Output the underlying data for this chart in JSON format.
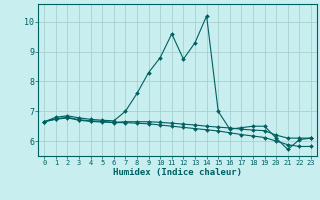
{
  "xlabel": "Humidex (Indice chaleur)",
  "ylabel": "",
  "background_color": "#c8eef0",
  "grid_color": "#a0ccc8",
  "line_color": "#006060",
  "xlim": [
    -0.5,
    23.5
  ],
  "ylim": [
    5.5,
    10.6
  ],
  "yticks": [
    6,
    7,
    8,
    9,
    10
  ],
  "xticks": [
    0,
    1,
    2,
    3,
    4,
    5,
    6,
    7,
    8,
    9,
    10,
    11,
    12,
    13,
    14,
    15,
    16,
    17,
    18,
    19,
    20,
    21,
    22,
    23
  ],
  "series1_x": [
    0,
    1,
    2,
    3,
    4,
    5,
    6,
    7,
    8,
    9,
    10,
    11,
    12,
    13,
    14,
    15,
    16,
    17,
    18,
    19,
    20,
    21,
    22,
    23
  ],
  "series1_y": [
    6.65,
    6.8,
    6.85,
    6.78,
    6.73,
    6.7,
    6.68,
    7.0,
    7.6,
    8.3,
    8.8,
    9.6,
    8.75,
    9.3,
    10.2,
    7.0,
    6.4,
    6.45,
    6.5,
    6.5,
    6.1,
    5.72,
    6.05,
    6.1
  ],
  "series2_x": [
    0,
    1,
    2,
    3,
    4,
    5,
    6,
    7,
    8,
    9,
    10,
    11,
    12,
    13,
    14,
    15,
    16,
    17,
    18,
    19,
    20,
    21,
    22,
    23
  ],
  "series2_y": [
    6.65,
    6.75,
    6.8,
    6.72,
    6.68,
    6.66,
    6.63,
    6.65,
    6.65,
    6.65,
    6.63,
    6.6,
    6.57,
    6.54,
    6.5,
    6.47,
    6.44,
    6.4,
    6.37,
    6.35,
    6.2,
    6.1,
    6.1,
    6.1
  ],
  "series3_x": [
    0,
    1,
    2,
    3,
    4,
    5,
    6,
    7,
    8,
    9,
    10,
    11,
    12,
    13,
    14,
    15,
    16,
    17,
    18,
    19,
    20,
    21,
    22,
    23
  ],
  "series3_y": [
    6.65,
    6.73,
    6.78,
    6.7,
    6.66,
    6.64,
    6.62,
    6.62,
    6.6,
    6.58,
    6.54,
    6.5,
    6.46,
    6.42,
    6.38,
    6.34,
    6.28,
    6.22,
    6.17,
    6.12,
    6.0,
    5.88,
    5.82,
    5.82
  ]
}
